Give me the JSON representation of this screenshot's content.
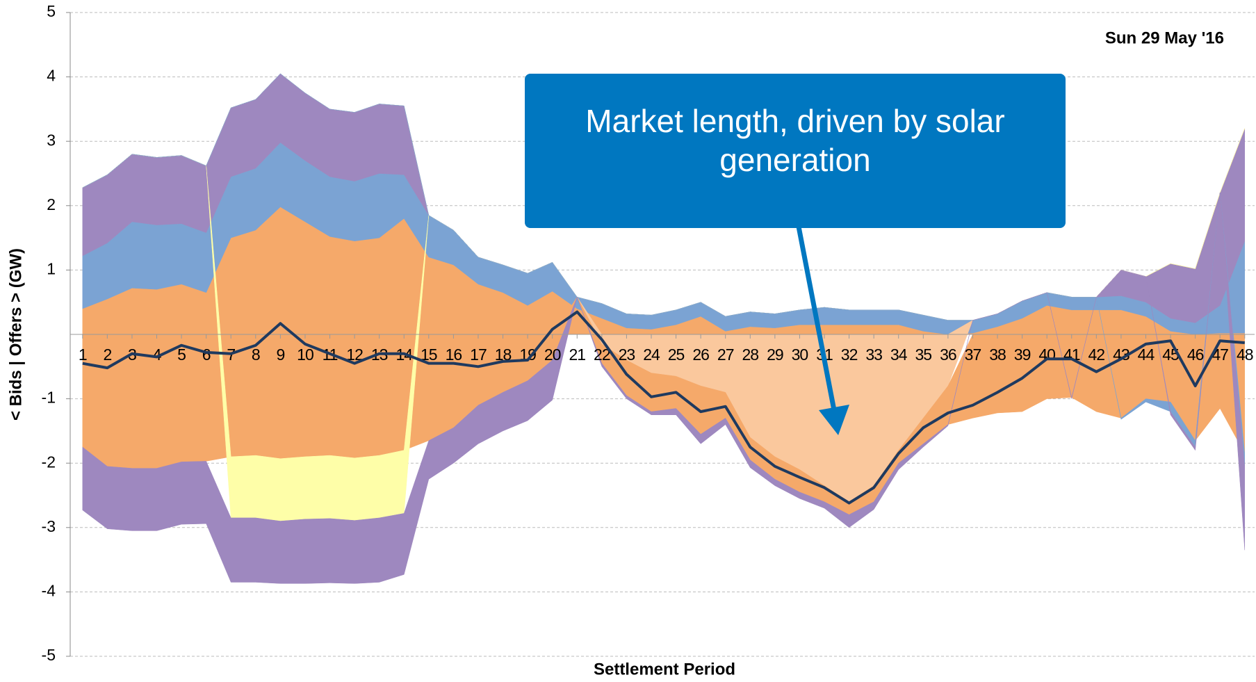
{
  "chart_data": {
    "type": "area",
    "annotations": {
      "date": "Sun 29 May '16",
      "callout": "Market length, driven by solar generation"
    },
    "xlabel": "Settlement Period",
    "ylabel": "< Bids | Offers > (GW)",
    "x": [
      1,
      2,
      3,
      4,
      5,
      6,
      7,
      8,
      9,
      10,
      11,
      12,
      13,
      14,
      15,
      16,
      17,
      18,
      19,
      20,
      21,
      22,
      23,
      24,
      25,
      26,
      27,
      28,
      29,
      30,
      31,
      32,
      33,
      34,
      35,
      36,
      37,
      38,
      39,
      40,
      41,
      42,
      43,
      44,
      45,
      46,
      47,
      48
    ],
    "xlim": [
      0.5,
      48.4
    ],
    "xticks": [
      1,
      2,
      3,
      4,
      5,
      6,
      7,
      8,
      9,
      10,
      11,
      12,
      13,
      14,
      15,
      16,
      17,
      18,
      19,
      20,
      21,
      22,
      23,
      24,
      25,
      26,
      27,
      28,
      29,
      30,
      31,
      32,
      33,
      34,
      35,
      36,
      37,
      38,
      39,
      40,
      41,
      42,
      43,
      44,
      45,
      46,
      47,
      48
    ],
    "ylim": [
      -5,
      5
    ],
    "yticks": [
      -5,
      -4,
      -3,
      -2,
      -1,
      1,
      2,
      3,
      4,
      5
    ],
    "grid": true,
    "series": [
      {
        "color": "#f5a96a",
        "values": [
          0.4,
          0.55,
          0.72,
          0.7,
          0.78,
          0.65,
          1.5,
          1.62,
          1.98,
          1.75,
          1.52,
          1.45,
          1.5,
          1.8,
          1.2,
          1.08,
          0.78,
          0.65,
          0.45,
          0.67,
          0.4,
          0.25,
          0.1,
          0.08,
          0.15,
          0.28,
          0.05,
          0.12,
          0.1,
          0.15,
          0.15,
          0.15,
          0.15,
          0.15,
          0.05,
          0,
          0.02,
          0.12,
          0.25,
          0.45,
          0.38,
          0.38,
          0.38,
          0.28,
          0.05,
          0,
          0.02,
          0.02
        ]
      },
      {
        "color": "#7ba3d3",
        "values": [
          0.82,
          0.87,
          1.03,
          1.0,
          0.94,
          0.93,
          0.95,
          0.96,
          1.0,
          0.95,
          0.93,
          0.93,
          1.0,
          0.68,
          0.65,
          0.54,
          0.42,
          0.43,
          0.5,
          0.45,
          0.18,
          0.23,
          0.22,
          0.22,
          0.23,
          0.22,
          0.23,
          0.23,
          0.22,
          0.23,
          0.27,
          0.23,
          0.23,
          0.23,
          0.25,
          0.22,
          0.2,
          0.2,
          0.27,
          0.2,
          0.2,
          0.2,
          0.22,
          0.22,
          0.2,
          0.18,
          0.43,
          1.43
        ]
      },
      {
        "color": "#9e88bf",
        "values": [
          1.06,
          1.06,
          1.05,
          1.05,
          1.06,
          1.04,
          1.07,
          1.07,
          1.07,
          1.05,
          1.05,
          1.07,
          1.08,
          1.07,
          0,
          0,
          0,
          0,
          0,
          0,
          0,
          0,
          0,
          0,
          0,
          0,
          0,
          0,
          0,
          0,
          0,
          0,
          0,
          0,
          0,
          0,
          0,
          0,
          0,
          0,
          0,
          0,
          0.4,
          0.4,
          0.85,
          0.84,
          1.75,
          1.75
        ]
      },
      {
        "color": "#fac89d",
        "values": [
          0,
          0,
          0,
          0,
          0,
          0,
          0,
          0,
          0,
          0,
          0,
          0,
          0,
          0,
          0,
          0,
          0,
          0,
          0,
          0,
          0,
          -0.15,
          -0.4,
          -0.6,
          -0.65,
          -0.8,
          -0.9,
          -1.6,
          -1.9,
          -2.1,
          -2.35,
          -2.6,
          -2.35,
          -1.8,
          -1.3,
          -0.8,
          0,
          0,
          0,
          0,
          0,
          0,
          0,
          0,
          0,
          0,
          0,
          0
        ]
      },
      {
        "color": "#f5a96a",
        "values": [
          -1.75,
          -2.05,
          -2.08,
          -2.08,
          -1.98,
          -1.97,
          -1.9,
          -1.88,
          -1.93,
          -1.9,
          -1.88,
          -1.92,
          -1.88,
          -1.8,
          -1.65,
          -1.45,
          -1.1,
          -0.9,
          -0.72,
          -0.4,
          0,
          -0.3,
          -0.55,
          -0.6,
          -0.5,
          -0.75,
          -0.4,
          -0.35,
          -0.35,
          -0.35,
          -0.25,
          -0.2,
          -0.25,
          -0.2,
          -0.4,
          -0.6,
          -1.3,
          -1.22,
          -1.2,
          -1.0,
          -0.98,
          -1.2,
          -1.3,
          -1.0,
          -1.05,
          -1.65,
          -1.15,
          -1.85
        ]
      },
      {
        "color": "#fefea8",
        "values": [
          0,
          0,
          0,
          0,
          0,
          0,
          -0.95,
          -0.97,
          -0.97,
          -0.97,
          -0.98,
          -0.97,
          -0.97,
          -0.98,
          0,
          0,
          0,
          0,
          0,
          0,
          0,
          0,
          0,
          0,
          0,
          0,
          0,
          0,
          0,
          0,
          0,
          0,
          0,
          0,
          0,
          0,
          0,
          0,
          0,
          0,
          0,
          0,
          0,
          0,
          0,
          0,
          0,
          0
        ]
      },
      {
        "color": "#7ba3d3",
        "values": [
          0,
          0,
          0,
          0,
          0,
          0,
          0,
          0,
          0,
          0,
          0,
          0,
          0,
          0,
          0,
          0,
          0,
          0,
          0,
          0,
          0,
          0,
          0,
          0,
          0,
          0,
          0,
          0,
          0,
          0,
          0,
          0,
          0,
          0,
          0,
          0,
          0,
          0,
          0,
          0,
          0,
          0,
          -0.02,
          -0.05,
          -0.15,
          -0.1,
          0,
          -0.2
        ]
      },
      {
        "color": "#9e88bf",
        "values": [
          -0.98,
          -0.97,
          -0.97,
          -0.97,
          -0.97,
          -0.97,
          -1.0,
          -1.0,
          -0.97,
          -1.0,
          -1.0,
          -0.98,
          -1.0,
          -0.95,
          -0.6,
          -0.55,
          -0.6,
          -0.6,
          -0.62,
          -0.62,
          0,
          -0.05,
          -0.05,
          -0.05,
          -0.1,
          -0.15,
          -0.1,
          -0.12,
          -0.1,
          -0.1,
          -0.1,
          -0.2,
          -0.12,
          -0.1,
          -0.05,
          -0.02,
          0,
          0,
          0,
          0,
          -0.02,
          0,
          0,
          0,
          -0.05,
          -0.05,
          0,
          -1.3
        ]
      },
      {
        "type": "line",
        "color": "#1f3a5f",
        "values": [
          -0.45,
          -0.52,
          -0.3,
          -0.35,
          -0.17,
          -0.28,
          -0.3,
          -0.17,
          0.17,
          -0.15,
          -0.3,
          -0.45,
          -0.3,
          -0.3,
          -0.45,
          -0.45,
          -0.5,
          -0.42,
          -0.4,
          0.08,
          0.35,
          -0.08,
          -0.62,
          -0.97,
          -0.9,
          -1.2,
          -1.12,
          -1.75,
          -2.05,
          -2.22,
          -2.38,
          -2.62,
          -2.38,
          -1.85,
          -1.45,
          -1.22,
          -1.1,
          -0.9,
          -0.68,
          -0.38,
          -0.38,
          -0.58,
          -0.38,
          -0.15,
          -0.1,
          -0.8,
          -0.1,
          -0.13
        ]
      }
    ]
  }
}
